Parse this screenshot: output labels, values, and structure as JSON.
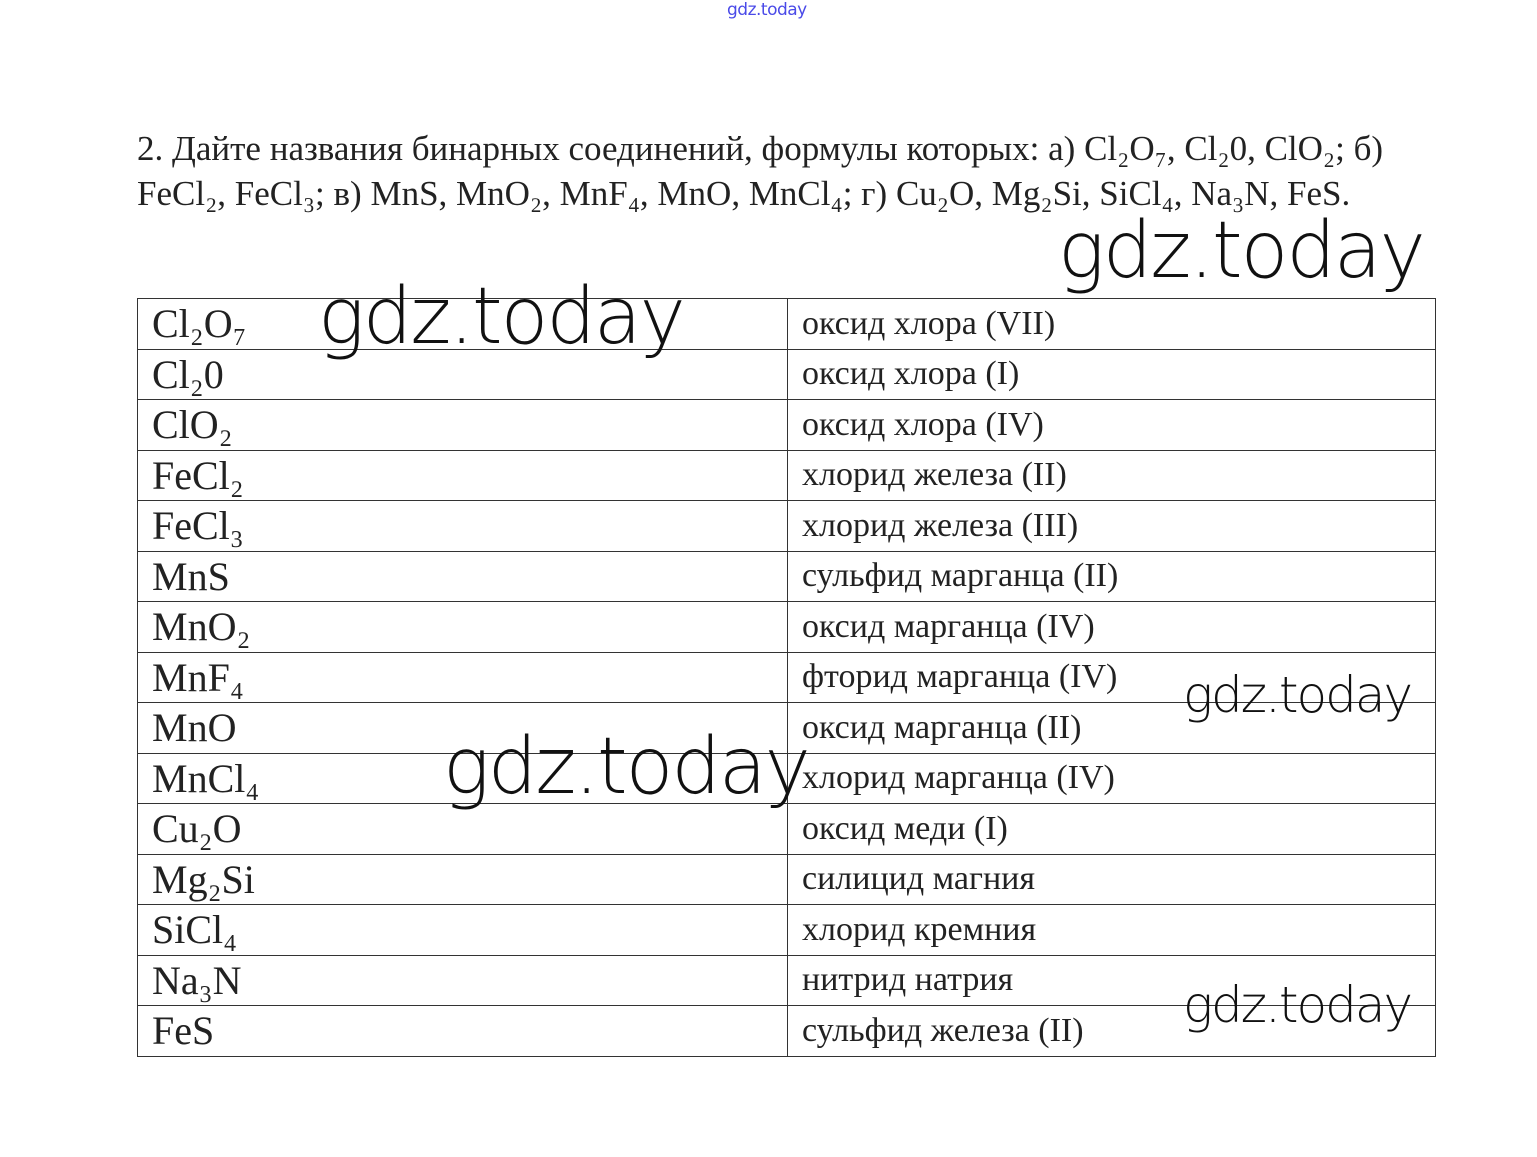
{
  "watermark": {
    "text": "gdz.today",
    "top_color": "#4a4ae8"
  },
  "question": "2. Дайте названия бинарных соединений, формулы которых: а) Cl₂O₇, Cl₂0, ClO₂; б) FeCl₂, FeCl₃; в) MnS, MnO₂, MnF₄, MnO, MnCl₄; г) Cu₂O, Mg₂Si, SiCl₄, Na₃N, FeS.",
  "rows": [
    {
      "formula": "Cl₂O₇",
      "name": "оксид хлора (VII)"
    },
    {
      "formula": "Cl₂0",
      "name": "оксид хлора (I)"
    },
    {
      "formula": "ClO₂",
      "name": "оксид хлора (IV)"
    },
    {
      "formula": "FeCl₂",
      "name": "хлорид железа (II)"
    },
    {
      "formula": "FeCl₃",
      "name": "хлорид железа (III)"
    },
    {
      "formula": "MnS",
      "name": "сульфид марганца (II)"
    },
    {
      "formula": "MnO₂",
      "name": "оксид марганца (IV)"
    },
    {
      "formula": "MnF₄",
      "name": "фторид марганца (IV)"
    },
    {
      "formula": "MnO",
      "name": "оксид марганца (II)"
    },
    {
      "formula": "MnCl₄",
      "name": "хлорид марганца (IV)"
    },
    {
      "formula": "Cu₂O",
      "name": "оксид меди (I)"
    },
    {
      "formula": "Mg₂Si",
      "name": "силицид магния"
    },
    {
      "formula": "SiCl₄",
      "name": "хлорид кремния"
    },
    {
      "formula": "Na₃N",
      "name": "нитрид натрия"
    },
    {
      "formula": "FeS",
      "name": "сульфид железа (II)"
    }
  ]
}
